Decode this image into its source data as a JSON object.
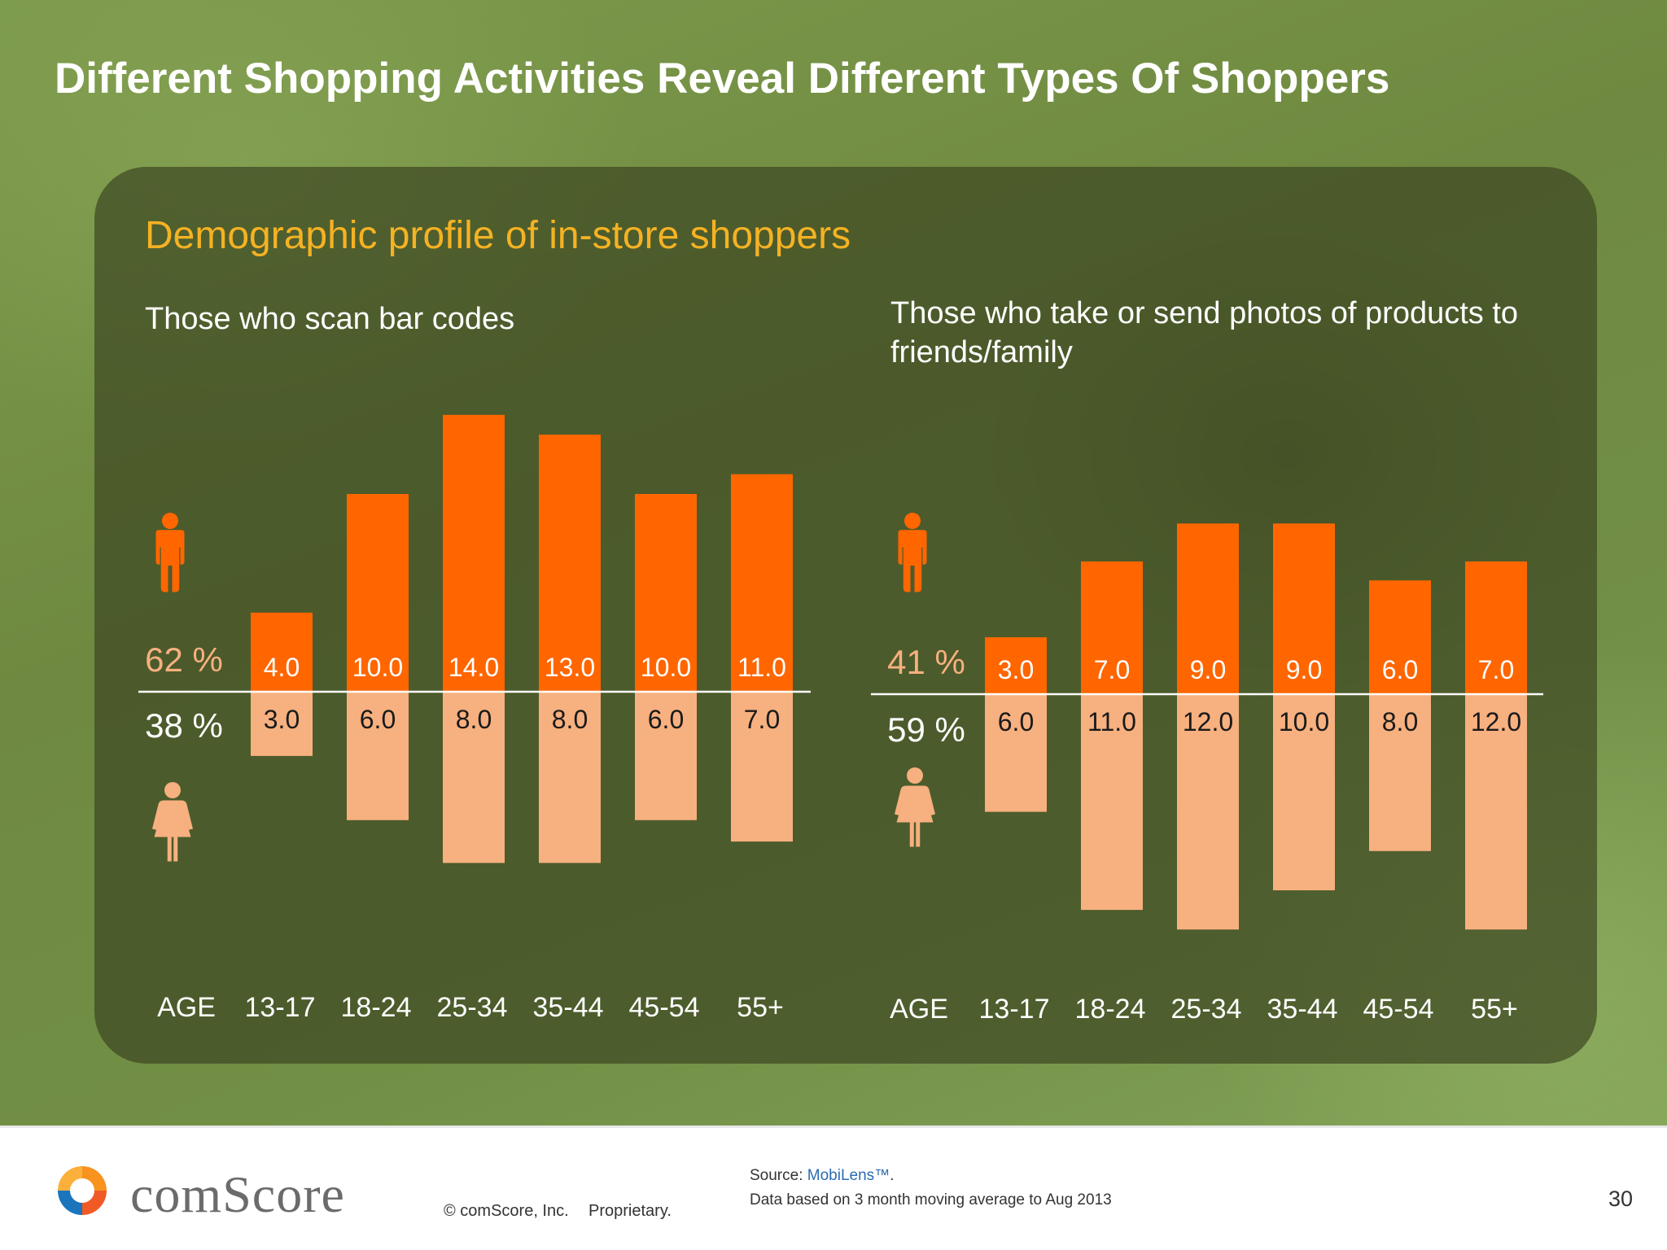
{
  "slide": {
    "title": "Different Shopping Activities Reveal Different Types Of Shoppers",
    "subtitle": "Demographic profile of in-store shoppers"
  },
  "colors": {
    "male_bar": "#ff6600",
    "female_bar": "#f7b07f",
    "male_pct_text": "#f7b07f",
    "female_pct_text": "#ffffff",
    "subtitle": "#f5b223"
  },
  "chart_data": [
    {
      "type": "bar",
      "title": "Those who scan bar codes",
      "x_label": "AGE",
      "categories": [
        "13-17",
        "18-24",
        "25-34",
        "35-44",
        "45-54",
        "55+"
      ],
      "series": [
        {
          "name": "62 %",
          "values": [
            4.0,
            10.0,
            14.0,
            13.0,
            10.0,
            11.0
          ],
          "value_labels": [
            "4.0",
            "10.0",
            "14.0",
            "13.0",
            "10.0",
            "11.0"
          ]
        },
        {
          "name": "38 %",
          "values": [
            3.0,
            6.0,
            8.0,
            8.0,
            6.0,
            7.0
          ],
          "value_labels": [
            "3.0",
            "6.0",
            "8.0",
            "8.0",
            "6.0",
            "7.0"
          ]
        }
      ],
      "icons": [
        "male-icon",
        "female-icon"
      ]
    },
    {
      "type": "bar",
      "title": "Those who take or send photos of products to friends/family",
      "x_label": "AGE",
      "categories": [
        "13-17",
        "18-24",
        "25-34",
        "35-44",
        "45-54",
        "55+"
      ],
      "series": [
        {
          "name": "41 %",
          "values": [
            3.0,
            7.0,
            9.0,
            9.0,
            6.0,
            7.0
          ],
          "value_labels": [
            "3.0",
            "7.0",
            "9.0",
            "9.0",
            "6.0",
            "7.0"
          ]
        },
        {
          "name": "59 %",
          "values": [
            6.0,
            11.0,
            12.0,
            10.0,
            8.0,
            12.0
          ],
          "value_labels": [
            "6.0",
            "11.0",
            "12.0",
            "10.0",
            "8.0",
            "12.0"
          ]
        }
      ],
      "icons": [
        "male-icon",
        "female-icon"
      ]
    }
  ],
  "footer": {
    "brand": "comScore",
    "copyright": "© comScore, Inc.",
    "proprietary": "Proprietary.",
    "source_label": "Source: ",
    "source_name": "MobiLens™",
    "source_end": ".",
    "data_note": "Data based on 3 month moving average to Aug 2013",
    "page_number": "30"
  }
}
